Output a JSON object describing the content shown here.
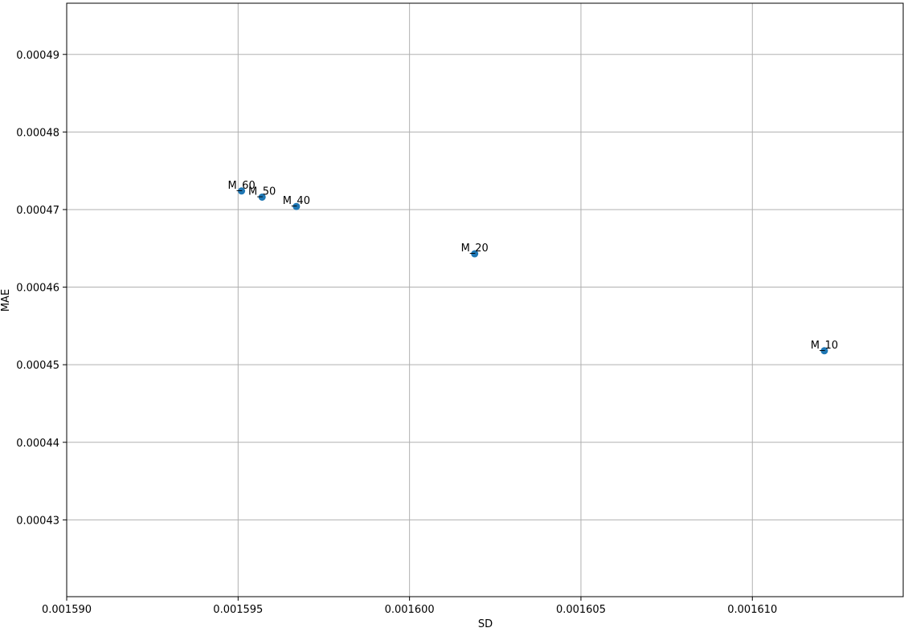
{
  "chart_data": {
    "type": "scatter",
    "title": "",
    "xlabel": "SD",
    "ylabel": "MAE",
    "xlim": [
      0.00159,
      0.0016144
    ],
    "ylim": [
      0.0004201,
      0.0004966
    ],
    "grid": true,
    "marker_color": "#1f77b4",
    "x_ticks": [
      "0.001590",
      "0.001595",
      "0.001600",
      "0.001605",
      "0.001610"
    ],
    "y_ticks": [
      "0.00043",
      "0.00044",
      "0.00045",
      "0.00046",
      "0.00047",
      "0.00048",
      "0.00049"
    ],
    "points": [
      {
        "label": "M_60",
        "x": 0.0015951,
        "y": 0.0004724
      },
      {
        "label": "M_50",
        "x": 0.0015957,
        "y": 0.0004716
      },
      {
        "label": "M_40",
        "x": 0.0015967,
        "y": 0.0004704
      },
      {
        "label": "M_20",
        "x": 0.0016019,
        "y": 0.0004643
      },
      {
        "label": "M_10",
        "x": 0.0016121,
        "y": 0.0004518
      }
    ]
  }
}
